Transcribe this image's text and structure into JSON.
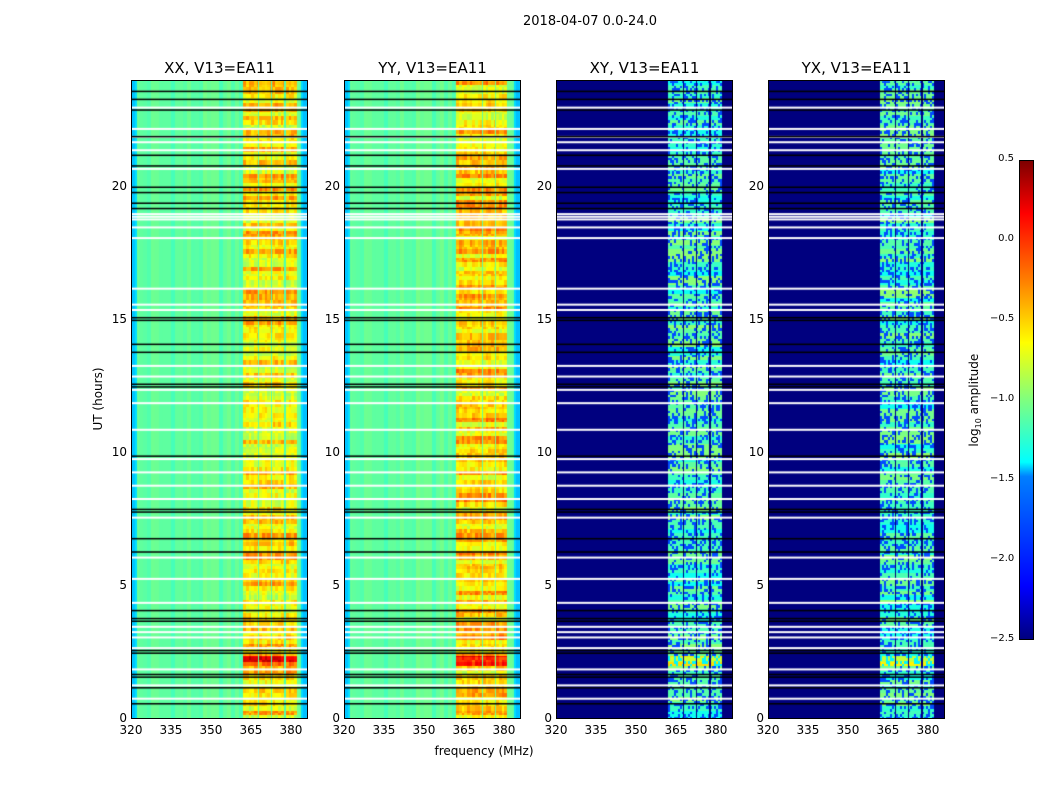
{
  "chart_data": [
    {
      "type": "heatmap",
      "suptitle": "2018-04-07 0.0-24.0",
      "xlabel": "frequency (MHz)",
      "ylabel": "UT (hours)",
      "xlim": [
        320,
        386.4
      ],
      "ylim": [
        0,
        24
      ],
      "xticks": [
        "320",
        "335",
        "350",
        "365",
        "380"
      ],
      "yticks": [
        "0",
        "5",
        "10",
        "15",
        "20"
      ],
      "panels": [
        {
          "title": "XX, V13=EA11",
          "baseline": -1.1,
          "band_level": -0.55,
          "band_mhz": [
            [
              362,
              367.6
            ],
            [
              367.8,
              372.4
            ],
            [
              372.8,
              377.3
            ],
            [
              378,
              382
            ]
          ]
        },
        {
          "title": "YY, V13=EA11",
          "baseline": -1.1,
          "band_level": -0.5,
          "band_mhz": [
            [
              362,
              366.6
            ],
            [
              366.8,
              371.4
            ],
            [
              371.8,
              376.3
            ],
            [
              377,
              381
            ]
          ]
        },
        {
          "title": "XY, V13=EA11",
          "baseline": -2.5,
          "band_level": -1.1,
          "band_mhz": [
            [
              362,
              367.6
            ],
            [
              367.8,
              372.4
            ],
            [
              372.8,
              377.3
            ],
            [
              378,
              382
            ]
          ]
        },
        {
          "title": "YX, V13=EA11",
          "baseline": -2.5,
          "band_level": -1.1,
          "band_mhz": [
            [
              362,
              367.6
            ],
            [
              367.8,
              372.4
            ],
            [
              372.8,
              377.3
            ],
            [
              378,
              382
            ]
          ]
        }
      ],
      "flagged_hours_white": [
        23.0,
        22.2,
        21.9,
        21.7,
        21.4,
        20.7,
        18.8,
        18.9,
        19.0,
        18.5,
        18.1,
        16.2,
        15.6,
        15.4,
        13.3,
        12.9,
        12.4,
        11.9,
        10.9,
        9.8,
        9.3,
        8.8,
        8.3,
        7.6,
        6.1,
        5.3,
        4.4,
        3.5,
        3.3,
        3.1,
        2.7,
        1.9,
        1.3,
        0.8
      ],
      "black_hours": [
        23.6,
        23.3,
        22.9,
        21.9,
        21.2,
        20.8,
        20.0,
        19.8,
        19.4,
        19.2,
        15.0,
        15.1,
        14.1,
        13.8,
        12.6,
        12.5,
        9.9,
        7.9,
        7.8,
        6.8,
        6.3,
        4.1,
        3.8,
        3.7,
        2.6,
        2.5,
        1.7,
        1.6,
        1.2,
        0.6
      ],
      "colorbar": {
        "label": "log₁₀ amplitude",
        "range": [
          -2.5,
          0.5
        ],
        "ticks": [
          "0.5",
          "0.0",
          "−0.5",
          "−1.0",
          "−1.5",
          "−2.0",
          "−2.5"
        ],
        "colormap": "jet"
      }
    }
  ]
}
